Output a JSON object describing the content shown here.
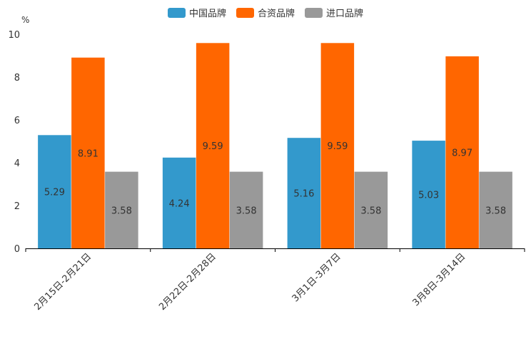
{
  "chart_data": {
    "type": "bar",
    "title": "",
    "unit": "%",
    "categories": [
      "2月15日-2月21日",
      "2月22日-2月28日",
      "3月1日-3月7日",
      "3月8日-3月14日"
    ],
    "series": [
      {
        "name": "中国品牌",
        "color": "#3399cc",
        "values": [
          5.29,
          4.24,
          5.16,
          5.03
        ]
      },
      {
        "name": "合资品牌",
        "color": "#ff6600",
        "values": [
          8.91,
          9.59,
          9.59,
          8.97
        ]
      },
      {
        "name": "进口品牌",
        "color": "#999999",
        "values": [
          3.58,
          3.58,
          3.58,
          3.58
        ]
      }
    ],
    "ylim": [
      0,
      10
    ],
    "yticks": [
      "0",
      "2",
      "4",
      "6",
      "8",
      "10"
    ],
    "legend_position": "top-center",
    "grid": false
  }
}
